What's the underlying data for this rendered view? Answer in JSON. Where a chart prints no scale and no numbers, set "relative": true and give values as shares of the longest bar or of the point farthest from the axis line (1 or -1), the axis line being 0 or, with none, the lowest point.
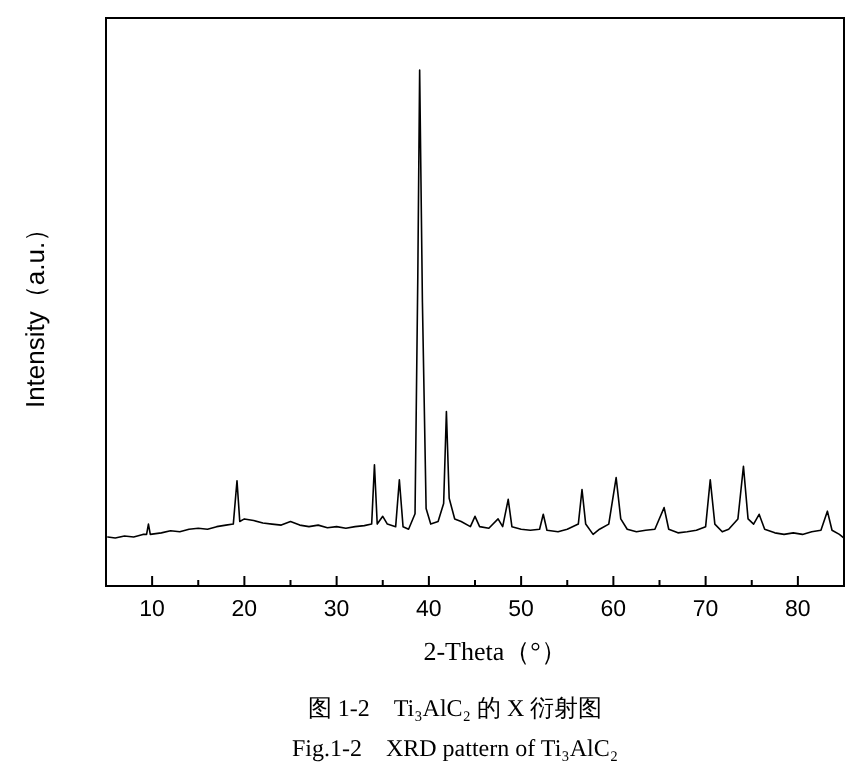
{
  "chart_data": {
    "type": "line",
    "relative": true,
    "xlabel": "2-Theta（°）",
    "ylabel": "Intensity（a.u.）",
    "annotations": [
      "图 1-2　Ti₃AlC₂ 的 X 衍射图",
      "Fig.1-2　XRD pattern of Ti₃AlC₂"
    ],
    "xlim": [
      5,
      85
    ],
    "xticks": [
      {
        "value": 5,
        "label": null
      },
      10,
      {
        "value": 15,
        "label": null
      },
      20,
      {
        "value": 25,
        "label": null
      },
      30,
      {
        "value": 35,
        "label": null
      },
      40,
      {
        "value": 45,
        "label": null
      },
      50,
      {
        "value": 55,
        "label": null
      },
      60,
      {
        "value": 65,
        "label": null
      },
      70,
      {
        "value": 75,
        "label": null
      },
      80,
      {
        "value": 85,
        "label": null
      }
    ],
    "grid": false,
    "series": [
      {
        "color": "#000000",
        "x": [
          5.2,
          6,
          7,
          8,
          9,
          9.4,
          9.6,
          9.8,
          11,
          12,
          13,
          14,
          15,
          16,
          17,
          18,
          18.8,
          19.2,
          19.5,
          20,
          21,
          22,
          23,
          24,
          25,
          26,
          27,
          28,
          29,
          30,
          31,
          32,
          33,
          33.8,
          34.1,
          34.4,
          35,
          35.5,
          36.4,
          36.8,
          37.2,
          37.8,
          38.5,
          38.8,
          39,
          39.3,
          39.7,
          40.2,
          41,
          41.6,
          41.9,
          42.2,
          42.8,
          43.5,
          44.5,
          45,
          45.5,
          46.5,
          47.5,
          48,
          48.6,
          49,
          50,
          51,
          52,
          52.4,
          52.8,
          54,
          55,
          56.2,
          56.6,
          57,
          57.8,
          58.5,
          59.5,
          60.3,
          60.8,
          61.5,
          62.5,
          63.5,
          64.5,
          65.5,
          66,
          67,
          68,
          69,
          70,
          70.5,
          71,
          71.8,
          72.5,
          73.5,
          74.1,
          74.6,
          75.2,
          75.8,
          76.4,
          77.5,
          78.5,
          79.5,
          80.5,
          81.5,
          82.5,
          83.2,
          83.7,
          84.5,
          85
        ],
        "values": [
          0.095,
          0.093,
          0.097,
          0.095,
          0.1,
          0.1,
          0.12,
          0.1,
          0.103,
          0.107,
          0.105,
          0.11,
          0.112,
          0.11,
          0.115,
          0.118,
          0.12,
          0.204,
          0.125,
          0.13,
          0.127,
          0.122,
          0.12,
          0.118,
          0.125,
          0.118,
          0.115,
          0.118,
          0.113,
          0.115,
          0.112,
          0.115,
          0.117,
          0.12,
          0.235,
          0.12,
          0.135,
          0.12,
          0.115,
          0.206,
          0.115,
          0.11,
          0.14,
          0.6,
          1.0,
          0.55,
          0.15,
          0.12,
          0.125,
          0.16,
          0.338,
          0.17,
          0.13,
          0.125,
          0.115,
          0.135,
          0.115,
          0.112,
          0.13,
          0.115,
          0.168,
          0.115,
          0.11,
          0.108,
          0.11,
          0.139,
          0.108,
          0.105,
          0.11,
          0.12,
          0.187,
          0.12,
          0.1,
          0.11,
          0.12,
          0.21,
          0.13,
          0.11,
          0.105,
          0.108,
          0.11,
          0.152,
          0.11,
          0.103,
          0.105,
          0.108,
          0.115,
          0.206,
          0.12,
          0.105,
          0.11,
          0.13,
          0.232,
          0.13,
          0.12,
          0.139,
          0.11,
          0.103,
          0.1,
          0.103,
          0.1,
          0.105,
          0.108,
          0.145,
          0.108,
          0.1,
          0.093
        ]
      }
    ]
  }
}
